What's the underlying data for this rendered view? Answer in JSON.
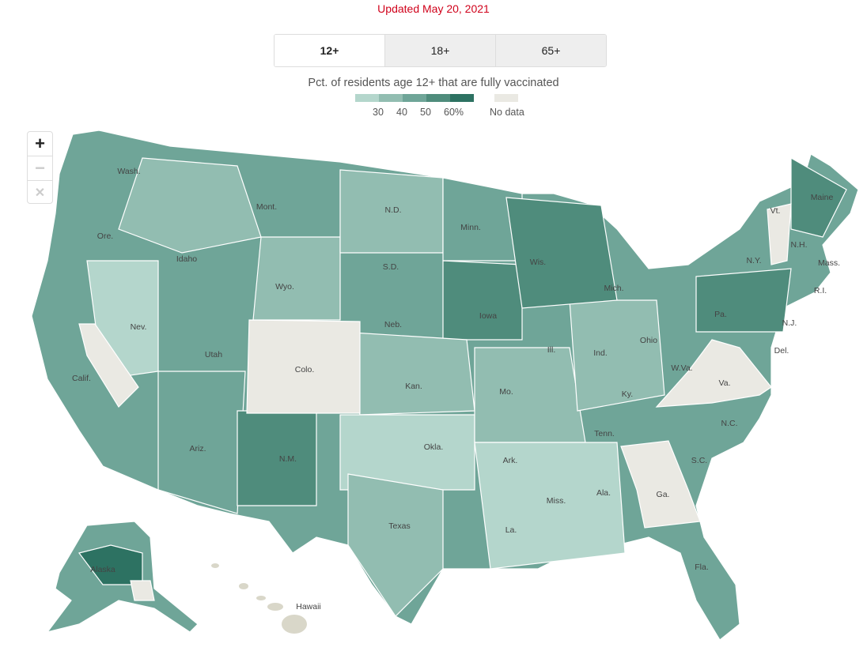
{
  "updated": "Updated May 20, 2021",
  "tabs": [
    {
      "label": "12+",
      "active": true
    },
    {
      "label": "18+",
      "active": false
    },
    {
      "label": "65+",
      "active": false
    }
  ],
  "legend": {
    "title": "Pct. of residents age 12+ that are fully vaccinated",
    "colors": [
      "#b4d6cc",
      "#92bdb1",
      "#6fa598",
      "#4f8c7c",
      "#2d7262"
    ],
    "ticks": [
      "30",
      "40",
      "50",
      "60%"
    ],
    "no_data_label": "No data",
    "no_data_color": "#eae9e3"
  },
  "zoom_controls": {
    "zoom_in": "+",
    "zoom_out": "−",
    "reset": "✕"
  },
  "state_labels": [
    "Wash.",
    "Mont.",
    "N.D.",
    "Minn.",
    "Ore.",
    "Idaho",
    "Wyo.",
    "S.D.",
    "Wis.",
    "Mich.",
    "N.Y.",
    "Maine",
    "Vt.",
    "N.H.",
    "Mass.",
    "R.I.",
    "Pa.",
    "N.J.",
    "Del.",
    "Nev.",
    "Neb.",
    "Iowa",
    "Ill.",
    "Ind.",
    "Ohio",
    "Utah",
    "Colo.",
    "Kan.",
    "Mo.",
    "Ky.",
    "W.Va.",
    "Va.",
    "Calif.",
    "N.C.",
    "Tenn.",
    "Ariz.",
    "N.M.",
    "Okla.",
    "Ark.",
    "S.C.",
    "Ala.",
    "Miss.",
    "Ga.",
    "Texas",
    "La.",
    "Fla.",
    "Alaska",
    "Hawaii"
  ],
  "no_data_states": [
    "Colo.",
    "W.Va.",
    "Va.",
    "Ga.",
    "Vt."
  ]
}
